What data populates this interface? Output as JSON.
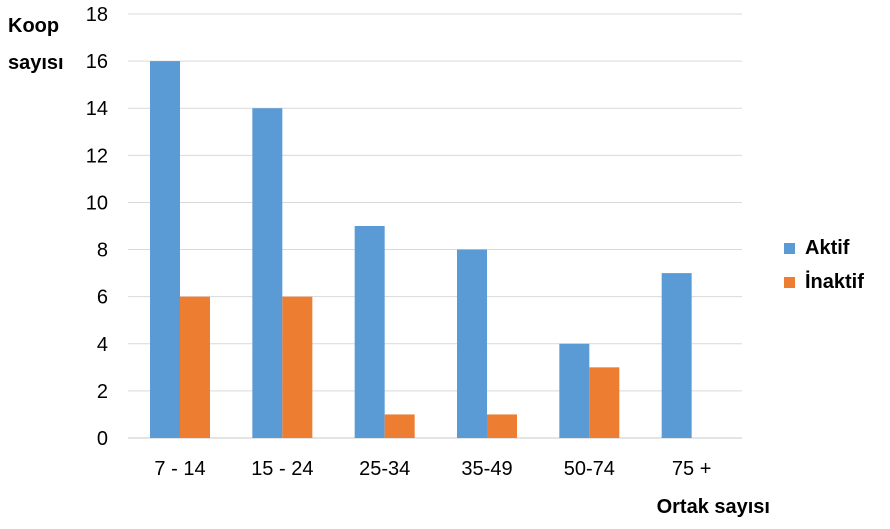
{
  "chart_data": {
    "type": "bar",
    "categories": [
      "7 - 14",
      "15 - 24",
      "25-34",
      "35-49",
      "50-74",
      "75 +"
    ],
    "series": [
      {
        "name": "Aktif",
        "values": [
          16,
          14,
          9,
          8,
          4,
          7
        ],
        "color": "#5b9bd5"
      },
      {
        "name": "İnaktif",
        "values": [
          6,
          6,
          1,
          1,
          3,
          0
        ],
        "color": "#ed7d31"
      }
    ],
    "ylabel": "Koop\nsayısı",
    "xlabel": "Ortak sayısı",
    "ylim": [
      0,
      18
    ],
    "yticks": [
      "0",
      "2",
      "4",
      "6",
      "8",
      "10",
      "12",
      "14",
      "16",
      "18"
    ],
    "grid": true,
    "legend_position": "right"
  }
}
